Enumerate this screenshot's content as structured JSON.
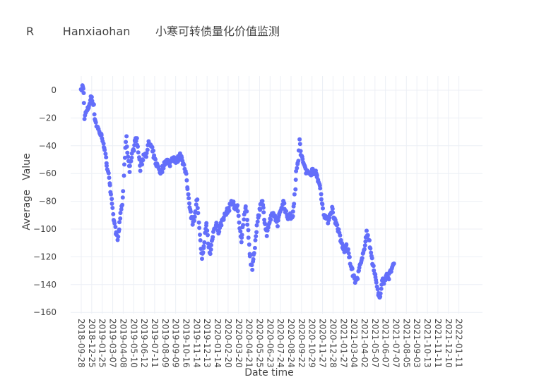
{
  "chart_data": {
    "type": "scatter",
    "title": "R        Hanxiaohan       小寒可转债量化价值监测",
    "xlabel": "Date time",
    "ylabel": "Average   Value",
    "ylim": [
      -160,
      10
    ],
    "yticks": [
      0,
      -20,
      -40,
      -60,
      -80,
      -100,
      -120,
      -140,
      -160
    ],
    "xtick_labels": [
      "2018-09-28",
      "2018-12-25",
      "2019-01-25",
      "2019-03-07",
      "2019-04-08",
      "2019-05-10",
      "2019-06-12",
      "2019-07-11",
      "2019-08-09",
      "2019-09-09",
      "2019-10-16",
      "2019-11-14",
      "2019-12-13",
      "2020-01-14",
      "2020-02-20",
      "2020-03-20",
      "2020-04-21",
      "2020-05-25",
      "2020-06-23",
      "2020-07-24",
      "2020-08-24",
      "2020-09-22",
      "2020-10-29",
      "2020-11-27",
      "2020-12-28",
      "2021-01-27",
      "2021-03-04",
      "2021-04-02",
      "2021-05-07",
      "2021-06-07",
      "2021-07-07",
      "2021-08-05",
      "2021-09-03",
      "2021-10-13",
      "2021-11-11",
      "2021-12-10",
      "2022-01-11"
    ],
    "grid": true,
    "marker_color": "#636efa",
    "keypoints": [
      [
        0,
        -1
      ],
      [
        0.1,
        3
      ],
      [
        0.15,
        2
      ],
      [
        0.22,
        -1
      ],
      [
        0.3,
        -19
      ],
      [
        0.4,
        -17
      ],
      [
        0.55,
        -15
      ],
      [
        0.7,
        -12
      ],
      [
        0.8,
        -9
      ],
      [
        0.9,
        -6
      ],
      [
        1.0,
        -5
      ],
      [
        1.1,
        -8
      ],
      [
        1.2,
        -12
      ],
      [
        1.3,
        -20
      ],
      [
        1.45,
        -25
      ],
      [
        1.6,
        -28
      ],
      [
        1.75,
        -30
      ],
      [
        1.9,
        -33
      ],
      [
        2.05,
        -35
      ],
      [
        2.2,
        -42
      ],
      [
        2.35,
        -50
      ],
      [
        2.5,
        -55
      ],
      [
        2.65,
        -62
      ],
      [
        2.75,
        -70
      ],
      [
        2.9,
        -80
      ],
      [
        3.05,
        -90
      ],
      [
        3.2,
        -97
      ],
      [
        3.35,
        -104
      ],
      [
        3.5,
        -107
      ],
      [
        3.6,
        -100
      ],
      [
        3.75,
        -88
      ],
      [
        3.9,
        -82
      ],
      [
        4.0,
        -72
      ],
      [
        4.1,
        -55
      ],
      [
        4.2,
        -40
      ],
      [
        4.3,
        -35
      ],
      [
        4.45,
        -48
      ],
      [
        4.6,
        -57
      ],
      [
        4.75,
        -50
      ],
      [
        4.9,
        -45
      ],
      [
        5.05,
        -40
      ],
      [
        5.2,
        -33
      ],
      [
        5.35,
        -38
      ],
      [
        5.5,
        -48
      ],
      [
        5.65,
        -57
      ],
      [
        5.8,
        -52
      ],
      [
        5.95,
        -47
      ],
      [
        6.1,
        -45
      ],
      [
        6.25,
        -47
      ],
      [
        6.4,
        -38
      ],
      [
        6.6,
        -40
      ],
      [
        6.8,
        -44
      ],
      [
        7.0,
        -50
      ],
      [
        7.2,
        -54
      ],
      [
        7.4,
        -56
      ],
      [
        7.6,
        -60
      ],
      [
        7.8,
        -55
      ],
      [
        8.0,
        -52
      ],
      [
        8.2,
        -50
      ],
      [
        8.4,
        -54
      ],
      [
        8.6,
        -50
      ],
      [
        8.8,
        -48
      ],
      [
        9.0,
        -52
      ],
      [
        9.2,
        -50
      ],
      [
        9.4,
        -47
      ],
      [
        9.6,
        -48
      ],
      [
        9.8,
        -55
      ],
      [
        10.0,
        -62
      ],
      [
        10.15,
        -72
      ],
      [
        10.3,
        -80
      ],
      [
        10.45,
        -88
      ],
      [
        10.6,
        -95
      ],
      [
        10.75,
        -92
      ],
      [
        10.9,
        -86
      ],
      [
        11.05,
        -78
      ],
      [
        11.2,
        -96
      ],
      [
        11.35,
        -110
      ],
      [
        11.5,
        -120
      ],
      [
        11.65,
        -115
      ],
      [
        11.8,
        -104
      ],
      [
        11.95,
        -96
      ],
      [
        12.1,
        -110
      ],
      [
        12.3,
        -118
      ],
      [
        12.5,
        -106
      ],
      [
        12.7,
        -99
      ],
      [
        12.9,
        -96
      ],
      [
        13.1,
        -102
      ],
      [
        13.3,
        -97
      ],
      [
        13.5,
        -92
      ],
      [
        13.7,
        -90
      ],
      [
        13.9,
        -87
      ],
      [
        14.1,
        -85
      ],
      [
        14.3,
        -80
      ],
      [
        14.5,
        -82
      ],
      [
        14.7,
        -86
      ],
      [
        14.9,
        -82
      ],
      [
        15.1,
        -100
      ],
      [
        15.25,
        -110
      ],
      [
        15.4,
        -100
      ],
      [
        15.55,
        -88
      ],
      [
        15.7,
        -85
      ],
      [
        15.85,
        -95
      ],
      [
        16.0,
        -112
      ],
      [
        16.15,
        -124
      ],
      [
        16.3,
        -128
      ],
      [
        16.45,
        -120
      ],
      [
        16.6,
        -110
      ],
      [
        16.75,
        -96
      ],
      [
        16.9,
        -90
      ],
      [
        17.05,
        -85
      ],
      [
        17.2,
        -78
      ],
      [
        17.35,
        -86
      ],
      [
        17.5,
        -94
      ],
      [
        17.7,
        -104
      ],
      [
        17.9,
        -96
      ],
      [
        18.1,
        -92
      ],
      [
        18.3,
        -89
      ],
      [
        18.5,
        -92
      ],
      [
        18.7,
        -96
      ],
      [
        18.9,
        -90
      ],
      [
        19.1,
        -84
      ],
      [
        19.3,
        -80
      ],
      [
        19.5,
        -88
      ],
      [
        19.7,
        -92
      ],
      [
        19.9,
        -90
      ],
      [
        20.1,
        -92
      ],
      [
        20.3,
        -80
      ],
      [
        20.5,
        -60
      ],
      [
        20.6,
        -54
      ],
      [
        20.7,
        -50
      ],
      [
        20.8,
        -36
      ],
      [
        20.9,
        -44
      ],
      [
        21.0,
        -48
      ],
      [
        21.15,
        -52
      ],
      [
        21.3,
        -54
      ],
      [
        21.45,
        -58
      ],
      [
        21.6,
        -60
      ],
      [
        21.75,
        -58
      ],
      [
        21.9,
        -60
      ],
      [
        22.05,
        -58
      ],
      [
        22.2,
        -60
      ],
      [
        22.35,
        -58
      ],
      [
        22.5,
        -62
      ],
      [
        22.65,
        -66
      ],
      [
        22.8,
        -72
      ],
      [
        22.95,
        -80
      ],
      [
        23.1,
        -88
      ],
      [
        23.3,
        -92
      ],
      [
        23.5,
        -94
      ],
      [
        23.7,
        -90
      ],
      [
        23.9,
        -85
      ],
      [
        24.1,
        -92
      ],
      [
        24.3,
        -96
      ],
      [
        24.5,
        -100
      ],
      [
        24.7,
        -108
      ],
      [
        24.9,
        -112
      ],
      [
        25.1,
        -116
      ],
      [
        25.3,
        -112
      ],
      [
        25.5,
        -118
      ],
      [
        25.7,
        -126
      ],
      [
        25.9,
        -132
      ],
      [
        26.1,
        -138
      ],
      [
        26.3,
        -136
      ],
      [
        26.5,
        -128
      ],
      [
        26.7,
        -124
      ],
      [
        26.9,
        -118
      ],
      [
        27.05,
        -110
      ],
      [
        27.2,
        -102
      ],
      [
        27.35,
        -106
      ],
      [
        27.5,
        -112
      ],
      [
        27.65,
        -118
      ],
      [
        27.8,
        -126
      ],
      [
        27.95,
        -132
      ],
      [
        28.1,
        -136
      ],
      [
        28.3,
        -146
      ],
      [
        28.45,
        -150
      ],
      [
        28.6,
        -144
      ],
      [
        28.75,
        -136
      ],
      [
        28.9,
        -138
      ],
      [
        29.1,
        -132
      ],
      [
        29.3,
        -135
      ],
      [
        29.5,
        -130
      ],
      [
        29.7,
        -128
      ],
      [
        29.85,
        -124
      ]
    ]
  }
}
